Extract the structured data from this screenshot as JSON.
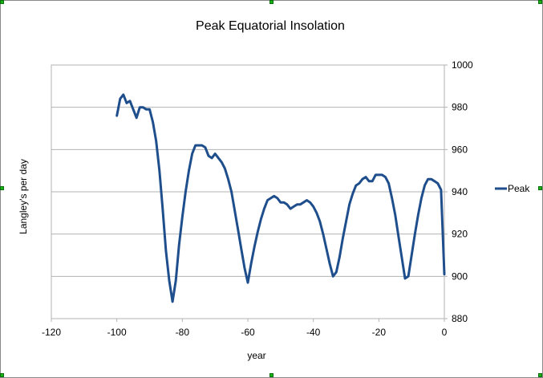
{
  "chart_data": {
    "type": "line",
    "title": "Peak Equatorial Insolation",
    "xlabel": "year",
    "ylabel": "Langley's per day",
    "xlim": [
      -120,
      0
    ],
    "ylim": [
      880,
      1000
    ],
    "xticks": [
      -120,
      -100,
      -80,
      -60,
      -40,
      -20,
      0
    ],
    "yticks": [
      880,
      900,
      920,
      940,
      960,
      980,
      1000
    ],
    "y_axis_side": "right",
    "grid": "horizontal",
    "legend": "right",
    "series": [
      {
        "name": "Peak",
        "color": "#1f4e8c",
        "x": [
          -100,
          -99,
          -98,
          -97,
          -96,
          -95,
          -94,
          -93,
          -92,
          -91,
          -90,
          -89,
          -88,
          -87,
          -86,
          -85,
          -84,
          -83,
          -82,
          -81,
          -80,
          -79,
          -78,
          -77,
          -76,
          -75,
          -74,
          -73,
          -72,
          -71,
          -70,
          -69,
          -68,
          -67,
          -66,
          -65,
          -64,
          -63,
          -62,
          -61,
          -60,
          -59,
          -58,
          -57,
          -56,
          -55,
          -54,
          -53,
          -52,
          -51,
          -50,
          -49,
          -48,
          -47,
          -46,
          -45,
          -44,
          -43,
          -42,
          -41,
          -40,
          -39,
          -38,
          -37,
          -36,
          -35,
          -34,
          -33,
          -32,
          -31,
          -30,
          -29,
          -28,
          -27,
          -26,
          -25,
          -24,
          -23,
          -22,
          -21,
          -20,
          -19,
          -18,
          -17,
          -16,
          -15,
          -14,
          -13,
          -12,
          -11,
          -10,
          -9,
          -8,
          -7,
          -6,
          -5,
          -4,
          -3,
          -2,
          -1,
          0
        ],
        "values": [
          976,
          984,
          986,
          982,
          983,
          979,
          975,
          980,
          980,
          979,
          979,
          973,
          964,
          950,
          932,
          912,
          898,
          888,
          898,
          915,
          928,
          940,
          950,
          958,
          962,
          962,
          962,
          961,
          957,
          956,
          958,
          956,
          954,
          951,
          946,
          940,
          931,
          922,
          913,
          904,
          897,
          906,
          914,
          921,
          927,
          932,
          936,
          937,
          938,
          937,
          935,
          935,
          934,
          932,
          933,
          934,
          934,
          935,
          936,
          935,
          933,
          930,
          926,
          920,
          913,
          906,
          900,
          902,
          909,
          918,
          926,
          934,
          939,
          943,
          944,
          946,
          947,
          945,
          945,
          948,
          948,
          948,
          947,
          944,
          937,
          929,
          919,
          909,
          899,
          900,
          910,
          920,
          929,
          937,
          943,
          946,
          946,
          945,
          944,
          941,
          901
        ]
      }
    ]
  }
}
